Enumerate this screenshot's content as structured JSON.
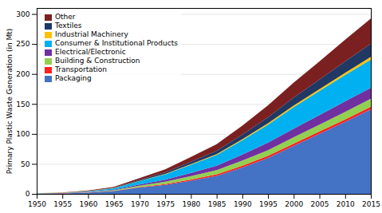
{
  "chart_data": {
    "type": "area",
    "stacked": true,
    "x": [
      1950,
      1955,
      1960,
      1965,
      1970,
      1975,
      1980,
      1985,
      1990,
      1995,
      2000,
      2005,
      2010,
      2015
    ],
    "series": [
      {
        "name": "Packaging",
        "color": "#4472C4",
        "values": [
          0.4,
          0.8,
          2.0,
          4.5,
          10.5,
          15.0,
          22.0,
          30.0,
          44.0,
          60.0,
          80.0,
          100.0,
          120.0,
          141.0
        ]
      },
      {
        "name": "Transportation",
        "color": "#FF2020",
        "values": [
          0.05,
          0.1,
          0.2,
          0.4,
          0.8,
          1.2,
          2.0,
          2.5,
          3.0,
          3.5,
          3.8,
          4.0,
          4.2,
          4.5
        ]
      },
      {
        "name": "Building & Construction",
        "color": "#92D050",
        "values": [
          0.1,
          0.2,
          0.5,
          1.0,
          2.5,
          4.0,
          5.5,
          7.0,
          8.5,
          9.5,
          10.5,
          11.5,
          12.5,
          13.0
        ]
      },
      {
        "name": "Electrical/Electronic",
        "color": "#7030A0",
        "values": [
          0.1,
          0.2,
          0.5,
          1.0,
          2.0,
          3.5,
          5.5,
          7.5,
          10.0,
          12.5,
          14.5,
          16.0,
          17.5,
          18.5
        ]
      },
      {
        "name": "Consumer & Institutional Products",
        "color": "#00B0F0",
        "values": [
          0.2,
          0.5,
          1.2,
          2.5,
          5.5,
          9.0,
          13.5,
          18.0,
          24.0,
          30.0,
          36.0,
          40.0,
          44.0,
          47.0
        ]
      },
      {
        "name": "Industrial Machinery",
        "color": "#FFC000",
        "values": [
          0.02,
          0.05,
          0.1,
          0.2,
          0.4,
          0.7,
          1.0,
          1.3,
          1.7,
          2.2,
          2.7,
          3.2,
          3.8,
          4.5
        ]
      },
      {
        "name": "Textiles",
        "color": "#1F3864",
        "values": [
          0.05,
          0.1,
          0.3,
          0.7,
          1.5,
          2.5,
          4.0,
          5.5,
          7.5,
          10.0,
          13.0,
          16.0,
          19.0,
          22.0
        ]
      },
      {
        "name": "Other",
        "color": "#7B2020",
        "values": [
          0.1,
          0.3,
          0.7,
          1.5,
          3.0,
          5.0,
          8.0,
          11.0,
          15.0,
          20.0,
          25.0,
          30.0,
          36.0,
          42.0
        ]
      }
    ],
    "ylabel": "Primary Plastic Waste Generation (in Mt)",
    "xlim": [
      1950,
      2015
    ],
    "xticks": [
      1950,
      1955,
      1960,
      1965,
      1970,
      1975,
      1980,
      1985,
      1990,
      1995,
      2000,
      2005,
      2010,
      2015
    ],
    "ylim": [
      0,
      310
    ],
    "yticks": [
      0,
      50,
      100,
      150,
      200,
      250,
      300
    ],
    "grid": true,
    "legend": "upper left"
  }
}
